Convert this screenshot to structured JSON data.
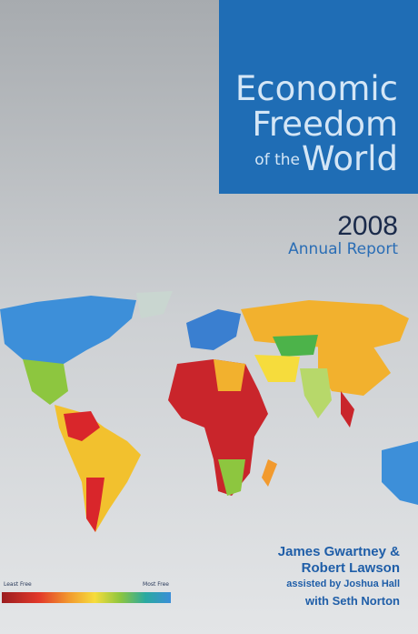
{
  "cover": {
    "title": {
      "line1": "Economic",
      "line2": "Freedom",
      "prefix": "of the",
      "line3": "World"
    },
    "year": "2008",
    "subtitle": "Annual Report",
    "authors": {
      "line1": "James Gwartney &",
      "line2": "Robert Lawson",
      "assisted": "assisted by Joshua Hall",
      "with": "with Seth Norton"
    },
    "legend": {
      "low": "Least Free",
      "high": "Most Free"
    }
  }
}
